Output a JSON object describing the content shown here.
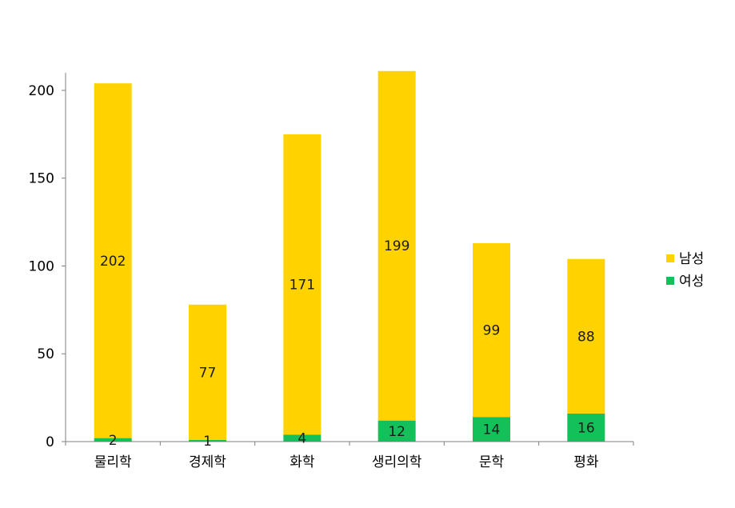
{
  "chart_data": {
    "type": "bar",
    "stacked": true,
    "categories": [
      "물리학",
      "경제학",
      "화학",
      "생리의학",
      "문학",
      "평화"
    ],
    "series": [
      {
        "name": "여성",
        "color": "#13c05a",
        "values": [
          2,
          1,
          4,
          12,
          14,
          16
        ]
      },
      {
        "name": "남성",
        "color": "#ffd200",
        "values": [
          202,
          77,
          171,
          199,
          99,
          88
        ]
      }
    ],
    "ylim": [
      0,
      210
    ],
    "yticks": [
      0,
      50,
      100,
      150,
      200
    ],
    "grid": false,
    "legend_position": "right"
  }
}
